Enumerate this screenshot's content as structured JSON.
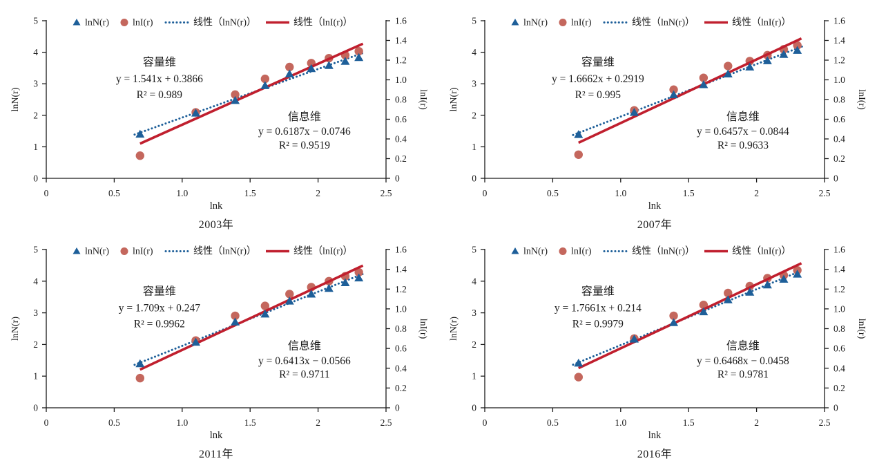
{
  "colors": {
    "series_lnN": "#1E5F99",
    "series_lnI": "#C4675D",
    "trend_lnN": "#1E5F99",
    "trend_lnI": "#C01F2E",
    "axis": "#1A1A1A",
    "text": "#1B1B1B",
    "background": "#FFFFFF"
  },
  "legend": {
    "items": [
      {
        "label": "lnN(r)",
        "marker": "triangle"
      },
      {
        "label": "lnI(r)",
        "marker": "circle"
      },
      {
        "label": "线性（lnN(r)）",
        "marker": "dotted-line"
      },
      {
        "label": "线性（lnI(r)）",
        "marker": "solid-line"
      }
    ]
  },
  "axes": {
    "xlabel": "lnk",
    "ylabel_left": "lnN(r)",
    "ylabel_right": "lnI(r)",
    "xlim": [
      0,
      2.5
    ],
    "ylim_left": [
      0,
      5
    ],
    "ylim_right": [
      0,
      1.6
    ],
    "xtick_values": [
      0,
      0.5,
      1.0,
      1.5,
      2,
      2.5
    ],
    "xtick_labels": [
      "0",
      "0.5",
      "1.0",
      "1.5",
      "2",
      "2.5"
    ],
    "ytick_left_values": [
      0,
      1,
      2,
      3,
      4,
      5
    ],
    "ytick_left_labels": [
      "0",
      "1",
      "2",
      "3",
      "4",
      "5"
    ],
    "ytick_right_values": [
      0,
      0.2,
      0.4,
      0.6,
      0.8,
      1.0,
      1.2,
      1.4,
      1.6
    ],
    "ytick_right_labels": [
      "0",
      "0.2",
      "0.4",
      "0.6",
      "0.8",
      "1.0",
      "1.2",
      "1.4",
      "1.6"
    ],
    "grid": false
  },
  "chart_data": [
    {
      "type": "scatter",
      "title": "2003年",
      "x": [
        0.69,
        1.1,
        1.39,
        1.61,
        1.79,
        1.95,
        2.08,
        2.2,
        2.3
      ],
      "series": [
        {
          "name": "lnN(r)",
          "axis": "left",
          "marker": "triangle",
          "values": [
            1.39,
            2.06,
            2.46,
            2.93,
            3.3,
            3.47,
            3.57,
            3.7,
            3.82
          ]
        },
        {
          "name": "lnI(r)",
          "axis": "right",
          "marker": "circle",
          "values": [
            0.23,
            0.67,
            0.85,
            1.01,
            1.13,
            1.17,
            1.22,
            1.25,
            1.29
          ]
        }
      ],
      "trendlines": [
        {
          "name": "线性（lnN(r)）",
          "axis": "left",
          "style": "dotted",
          "slope": 1.541,
          "intercept": 0.3866
        },
        {
          "name": "线性（lnI(r)）",
          "axis": "right",
          "style": "solid",
          "slope": 0.6187,
          "intercept": -0.0746
        }
      ],
      "annotations": [
        {
          "title": "容量维",
          "equation": "y = 1.541x + 0.3866",
          "r2": "R² = 0.989",
          "position": "upper-left"
        },
        {
          "title": "信息维",
          "equation": "y = 0.6187x − 0.0746",
          "r2": "R² = 0.9519",
          "position": "lower-right"
        }
      ]
    },
    {
      "type": "scatter",
      "title": "2007年",
      "x": [
        0.69,
        1.1,
        1.39,
        1.61,
        1.79,
        1.95,
        2.08,
        2.2,
        2.3
      ],
      "series": [
        {
          "name": "lnN(r)",
          "axis": "left",
          "marker": "triangle",
          "values": [
            1.38,
            2.08,
            2.64,
            2.96,
            3.3,
            3.52,
            3.72,
            3.92,
            4.05
          ]
        },
        {
          "name": "lnI(r)",
          "axis": "right",
          "marker": "circle",
          "values": [
            0.24,
            0.69,
            0.9,
            1.02,
            1.14,
            1.19,
            1.25,
            1.31,
            1.35
          ]
        }
      ],
      "trendlines": [
        {
          "name": "线性（lnN(r)）",
          "axis": "left",
          "style": "dotted",
          "slope": 1.6662,
          "intercept": 0.2919
        },
        {
          "name": "线性（lnI(r)）",
          "axis": "right",
          "style": "solid",
          "slope": 0.6457,
          "intercept": -0.0844
        }
      ],
      "annotations": [
        {
          "title": "容量维",
          "equation": "y = 1.6662x + 0.2919",
          "r2": "R² = 0.995",
          "position": "upper-left"
        },
        {
          "title": "信息维",
          "equation": "y = 0.6457x − 0.0844",
          "r2": "R² = 0.9633",
          "position": "lower-right"
        }
      ]
    },
    {
      "type": "scatter",
      "title": "2011年",
      "x": [
        0.69,
        1.1,
        1.39,
        1.61,
        1.79,
        1.95,
        2.08,
        2.2,
        2.3
      ],
      "series": [
        {
          "name": "lnN(r)",
          "axis": "left",
          "marker": "triangle",
          "values": [
            1.38,
            2.06,
            2.7,
            2.95,
            3.36,
            3.58,
            3.76,
            3.94,
            4.09
          ]
        },
        {
          "name": "lnI(r)",
          "axis": "right",
          "marker": "circle",
          "values": [
            0.3,
            0.68,
            0.93,
            1.03,
            1.15,
            1.22,
            1.28,
            1.33,
            1.37
          ]
        }
      ],
      "trendlines": [
        {
          "name": "线性（lnN(r)）",
          "axis": "left",
          "style": "dotted",
          "slope": 1.709,
          "intercept": 0.247
        },
        {
          "name": "线性（lnI(r)）",
          "axis": "right",
          "style": "solid",
          "slope": 0.6413,
          "intercept": -0.0566
        }
      ],
      "annotations": [
        {
          "title": "容量维",
          "equation": "y = 1.709x + 0.247",
          "r2": "R² = 0.9962",
          "position": "upper-left"
        },
        {
          "title": "信息维",
          "equation": "y = 0.6413x − 0.0566",
          "r2": "R² = 0.9711",
          "position": "lower-right"
        }
      ]
    },
    {
      "type": "scatter",
      "title": "2016年",
      "x": [
        0.69,
        1.1,
        1.39,
        1.61,
        1.79,
        1.95,
        2.08,
        2.2,
        2.3
      ],
      "series": [
        {
          "name": "lnN(r)",
          "axis": "left",
          "marker": "triangle",
          "values": [
            1.4,
            2.16,
            2.68,
            3.02,
            3.4,
            3.64,
            3.87,
            4.05,
            4.21
          ]
        },
        {
          "name": "lnI(r)",
          "axis": "right",
          "marker": "circle",
          "values": [
            0.31,
            0.7,
            0.93,
            1.04,
            1.16,
            1.23,
            1.31,
            1.34,
            1.39
          ]
        }
      ],
      "trendlines": [
        {
          "name": "线性（lnN(r)）",
          "axis": "left",
          "style": "dotted",
          "slope": 1.7661,
          "intercept": 0.214
        },
        {
          "name": "线性（lnI(r)）",
          "axis": "right",
          "style": "solid",
          "slope": 0.6468,
          "intercept": -0.0458
        }
      ],
      "annotations": [
        {
          "title": "容量维",
          "equation": "y = 1.7661x + 0.214",
          "r2": "R² = 0.9979",
          "position": "upper-left"
        },
        {
          "title": "信息维",
          "equation": "y = 0.6468x − 0.0458",
          "r2": "R² = 0.9781",
          "position": "lower-right"
        }
      ]
    }
  ]
}
